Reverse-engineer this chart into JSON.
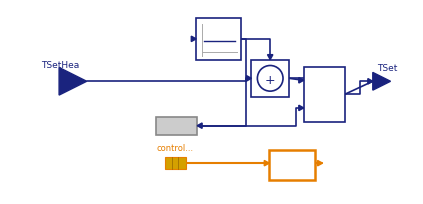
{
  "bg_color": "#ffffff",
  "blue": "#1a237e",
  "orange": "#e67e00",
  "gold": "#d4a000",
  "gray_fill": "#cccccc",
  "tsethea_label": "TSetHea",
  "tset_label": "TSet",
  "control_label": "control..."
}
